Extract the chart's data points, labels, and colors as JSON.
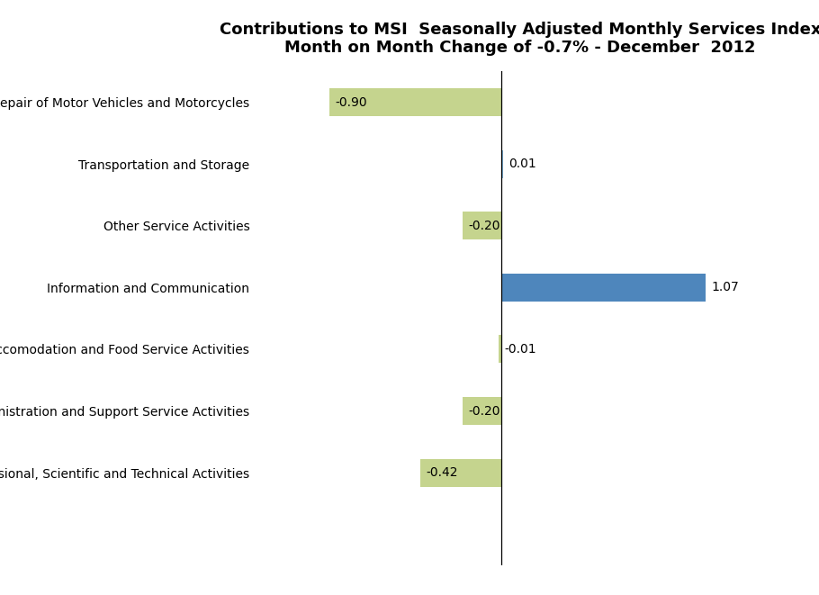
{
  "title_line1": "Contributions to MSI  Seasonally Adjusted Monthly Services Index",
  "title_line2": "Month on Month Change of -0.7% - December  2012",
  "categories": [
    "Wholesale and retail Trade; Repair of Motor Vehicles and Motorcycles",
    "Transportation and Storage",
    "Other Service Activities",
    "Information and Communication",
    "Accomodation and Food Service Activities",
    "Administration and Support Service Activities",
    "Professional, Scientific and Technical Activities"
  ],
  "values": [
    -0.9,
    0.01,
    -0.2,
    1.07,
    -0.01,
    -0.2,
    -0.42
  ],
  "colors": [
    "#c5d48e",
    "#7aaed4",
    "#c5d48e",
    "#4e86bc",
    "#c5d48e",
    "#c5d48e",
    "#c5d48e"
  ],
  "value_labels": [
    "-0.90",
    "0.01",
    "-0.20",
    "1.07",
    "-0.01",
    "-0.20",
    "-0.42"
  ],
  "xlim": [
    -1.25,
    1.45
  ],
  "title_fontsize": 13,
  "label_fontsize": 10,
  "value_fontsize": 10,
  "background_color": "#ffffff",
  "bar_height": 0.45
}
